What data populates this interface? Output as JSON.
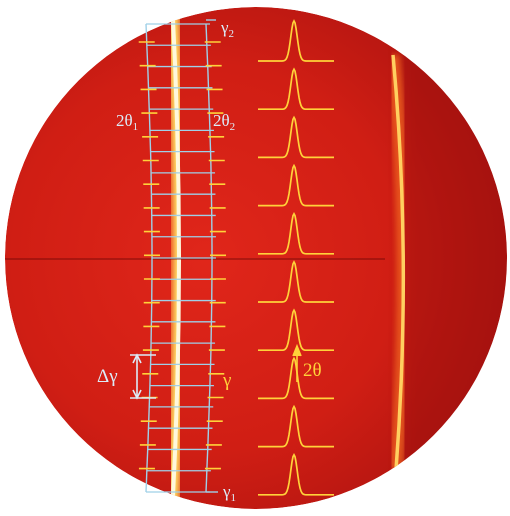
{
  "colors": {
    "background": "#ffffff",
    "detector_red": "#d41e16",
    "detector_dark": "#8e0b0b",
    "ring_glow": "#ffe060",
    "ring_core": "#fff6d0",
    "grid": "#9fd0e8",
    "profile": "#ffd23a",
    "label_light": "#dcecf8",
    "label_gold": "#ffd23a"
  },
  "labels": {
    "gamma2_base": "γ",
    "gamma2_sub": "2",
    "two_theta1_base": "2θ",
    "two_theta1_sub": "1",
    "two_theta2_base": "2θ",
    "two_theta2_sub": "2",
    "delta_gamma": "Δγ",
    "gamma": "γ",
    "two_theta": "2θ",
    "gamma1_base": "γ",
    "gamma1_sub": "1"
  }
}
